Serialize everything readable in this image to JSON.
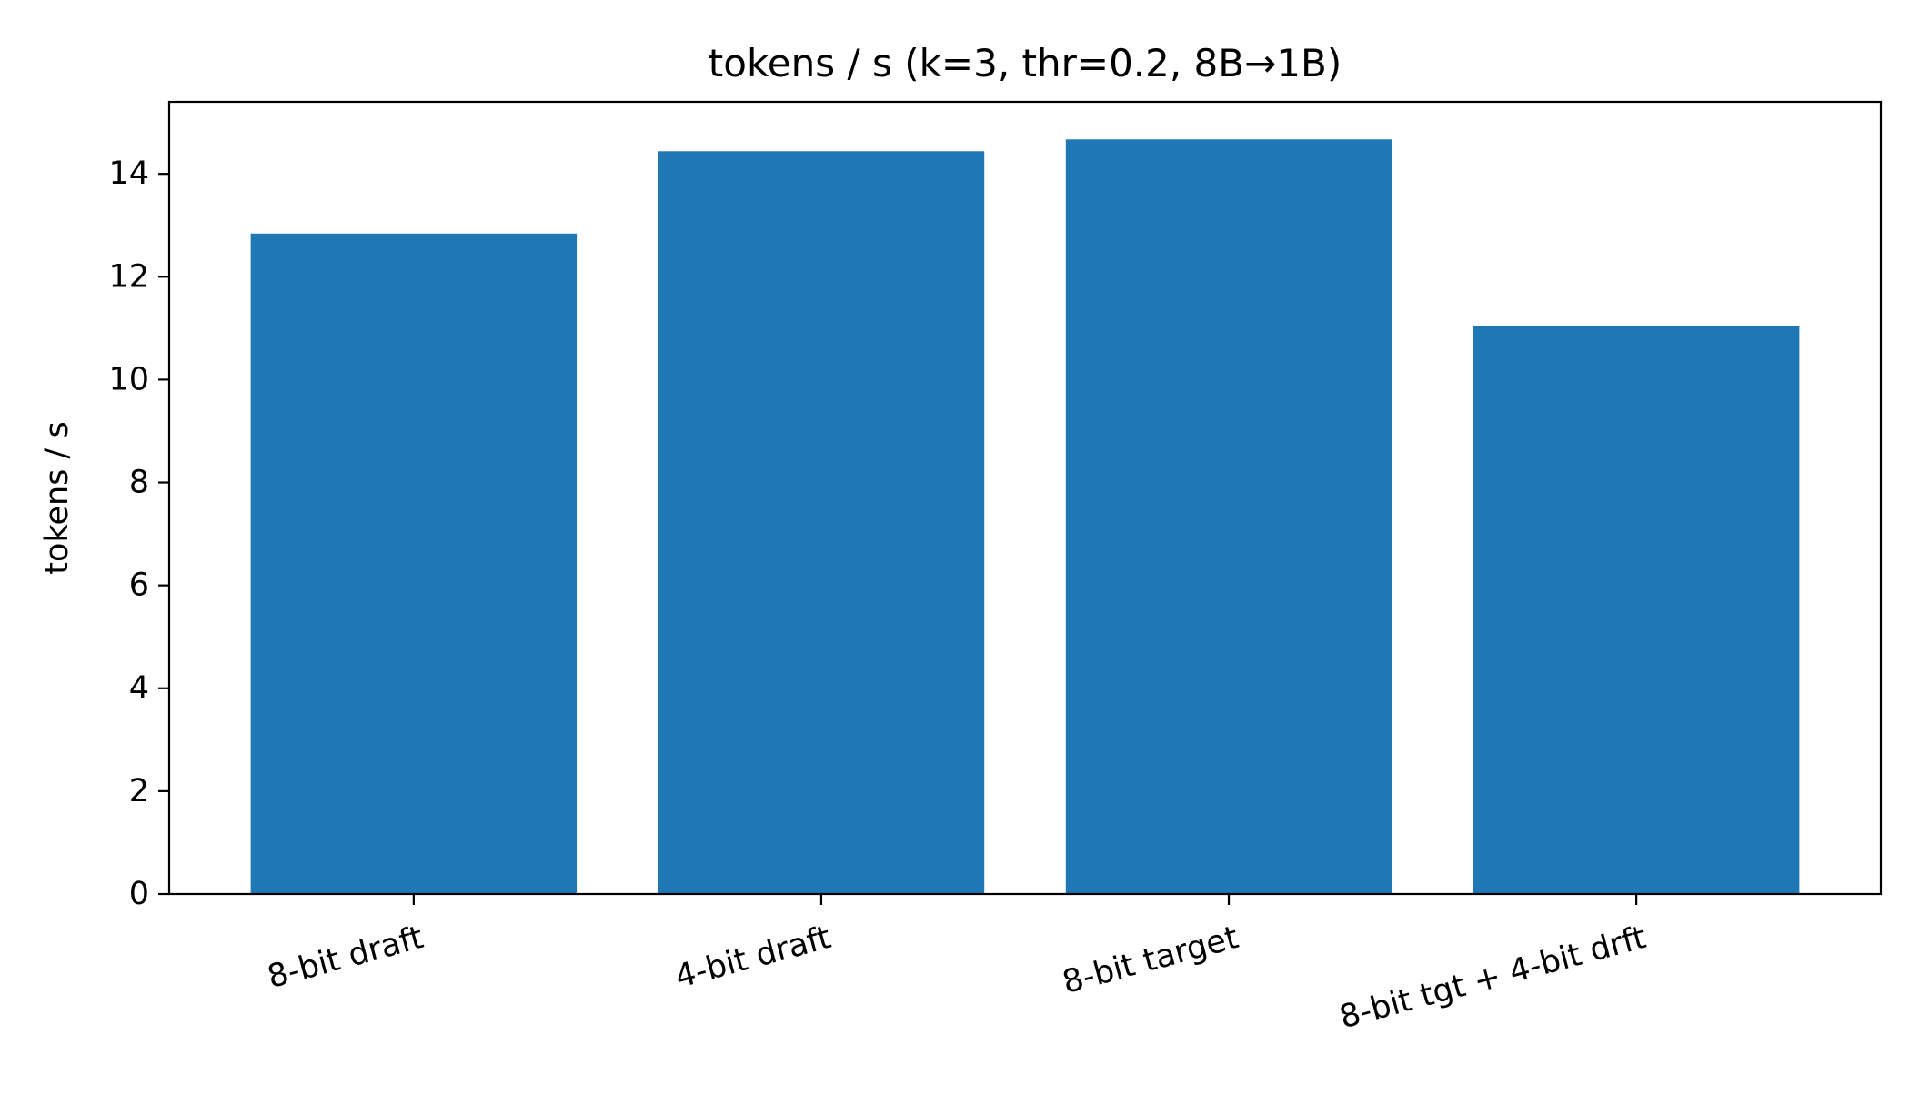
{
  "chart_data": {
    "type": "bar",
    "title": "tokens / s (k=3, thr=0.2, 8B→1B)",
    "xlabel": "",
    "ylabel": "tokens / s",
    "categories": [
      "8-bit draft",
      "4-bit draft",
      "8-bit target",
      "8-bit tgt + 4-bit drft"
    ],
    "values": [
      12.84,
      14.44,
      14.67,
      11.04
    ],
    "ylim": [
      0,
      15.4
    ],
    "yticks": [
      0,
      2,
      4,
      6,
      8,
      10,
      12,
      14
    ],
    "bar_color": "#1f77b4",
    "grid": false,
    "legend": "none"
  }
}
